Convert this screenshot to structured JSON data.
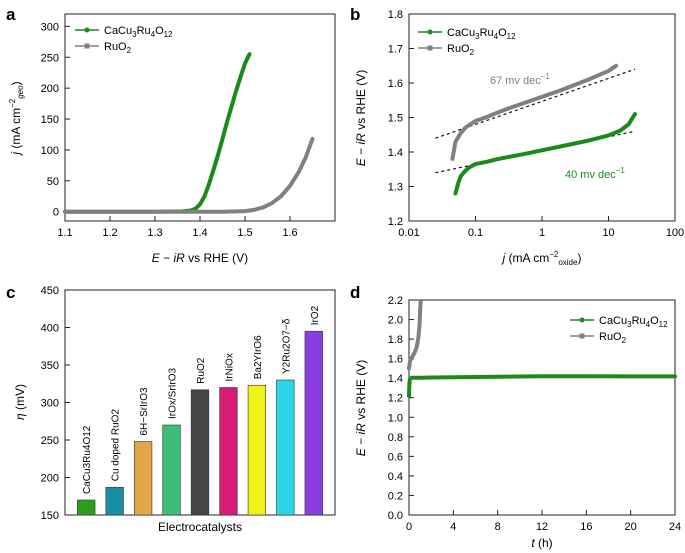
{
  "colors": {
    "green": "#1a8a1a",
    "gray": "#808080",
    "axis": "#222222"
  },
  "chart_data": [
    {
      "type": "line",
      "panel": "a",
      "xlabel": "E − iR vs RHE (V)",
      "ylabel": "j (mA cm−2geo)",
      "xlim": [
        1.1,
        1.7
      ],
      "ylim": [
        -15,
        320
      ],
      "xticks": [
        1.1,
        1.2,
        1.3,
        1.4,
        1.5,
        1.6
      ],
      "yticks": [
        0,
        50,
        100,
        150,
        200,
        250,
        300
      ],
      "legend": [
        "CaCu3Ru4O12",
        "RuO2"
      ],
      "legend_position": "top-left",
      "series": [
        {
          "name": "CaCu3Ru4O12",
          "color": "#1a8a1a",
          "x": [
            1.1,
            1.3,
            1.36,
            1.38,
            1.39,
            1.4,
            1.41,
            1.42,
            1.43,
            1.44,
            1.45,
            1.46,
            1.47,
            1.48,
            1.49,
            1.5,
            1.51
          ],
          "y": [
            0,
            0,
            0.5,
            2,
            5,
            12,
            25,
            45,
            68,
            92,
            118,
            145,
            170,
            195,
            218,
            240,
            255
          ]
        },
        {
          "name": "RuO2",
          "color": "#808080",
          "x": [
            1.1,
            1.45,
            1.5,
            1.52,
            1.54,
            1.56,
            1.58,
            1.6,
            1.62,
            1.635,
            1.65
          ],
          "y": [
            0,
            0,
            1,
            3,
            7,
            14,
            25,
            42,
            65,
            88,
            118
          ]
        }
      ]
    },
    {
      "type": "line",
      "panel": "b",
      "xscale": "log",
      "xlabel": "j (mA cm−2oxide)",
      "ylabel": "E − iR vs RHE (V)",
      "xlim": [
        0.01,
        100
      ],
      "ylim": [
        1.2,
        1.8
      ],
      "xticks": [
        0.01,
        0.1,
        1,
        10,
        100
      ],
      "xtick_labels": [
        "0.01",
        "0.1",
        "1",
        "10",
        "100"
      ],
      "yticks": [
        1.2,
        1.3,
        1.4,
        1.5,
        1.6,
        1.7,
        1.8
      ],
      "legend": [
        "CaCu3Ru4O12",
        "RuO2"
      ],
      "legend_position": "top-left",
      "annotations": [
        "67 mv dec−1",
        "40 mv dec−1"
      ],
      "series": [
        {
          "name": "CaCu3Ru4O12",
          "color": "#1a8a1a",
          "x": [
            0.05,
            0.055,
            0.06,
            0.07,
            0.08,
            0.1,
            0.15,
            0.2,
            0.3,
            0.5,
            1,
            2,
            5,
            10,
            15,
            20,
            25
          ],
          "y": [
            1.28,
            1.31,
            1.33,
            1.345,
            1.355,
            1.365,
            1.372,
            1.378,
            1.385,
            1.393,
            1.405,
            1.417,
            1.433,
            1.448,
            1.462,
            1.48,
            1.51
          ]
        },
        {
          "name": "RuO2",
          "color": "#808080",
          "x": [
            0.045,
            0.05,
            0.06,
            0.07,
            0.08,
            0.1,
            0.15,
            0.2,
            0.3,
            0.5,
            1,
            2,
            5,
            10,
            13
          ],
          "y": [
            1.38,
            1.43,
            1.455,
            1.47,
            1.478,
            1.49,
            1.502,
            1.512,
            1.525,
            1.54,
            1.56,
            1.58,
            1.61,
            1.635,
            1.65
          ]
        }
      ],
      "fit_lines": [
        {
          "x": [
            0.025,
            25
          ],
          "y": [
            1.44,
            1.64
          ]
        },
        {
          "x": [
            0.025,
            25
          ],
          "y": [
            1.34,
            1.46
          ]
        }
      ]
    },
    {
      "type": "bar",
      "panel": "c",
      "xlabel": "Electrocatalysts",
      "ylabel": "η (mV)",
      "ylim": [
        150,
        450
      ],
      "yticks": [
        150,
        200,
        250,
        300,
        350,
        400,
        450
      ],
      "categories": [
        "CaCu3Ru4O12",
        "Cu doped RuO2",
        "6H−SrIrO3",
        "IrOx/SrIrO3",
        "RuO2",
        "IrNiOx",
        "Ba2YIrO6",
        "Y2Ru2O7−δ",
        "IrO2"
      ],
      "values": [
        170,
        187,
        248,
        270,
        317,
        320,
        323,
        330,
        395
      ],
      "colors": [
        "#2e9d1e",
        "#1a8fa3",
        "#e2a64a",
        "#3dbd7a",
        "#444444",
        "#d81b73",
        "#f2f21b",
        "#2ad6e6",
        "#8a3de0"
      ]
    },
    {
      "type": "line",
      "panel": "d",
      "xlabel": "t (h)",
      "ylabel": "E − iR vs RHE (V)",
      "xlim": [
        0,
        24
      ],
      "ylim": [
        0,
        2.2
      ],
      "xticks": [
        0,
        4,
        8,
        12,
        16,
        20,
        24
      ],
      "yticks": [
        0,
        0.2,
        0.4,
        0.6,
        0.8,
        1.0,
        1.2,
        1.4,
        1.6,
        1.8,
        2.0,
        2.2
      ],
      "legend": [
        "CaCu3Ru4O12",
        "RuO2"
      ],
      "legend_position": "top-right",
      "series": [
        {
          "name": "CaCu3Ru4O12",
          "color": "#1a8a1a",
          "x": [
            0,
            0.02,
            0.05,
            0.1,
            0.3,
            1,
            2,
            4,
            8,
            12,
            16,
            20,
            24
          ],
          "y": [
            1.22,
            1.3,
            1.36,
            1.395,
            1.405,
            1.405,
            1.407,
            1.41,
            1.415,
            1.42,
            1.42,
            1.418,
            1.418
          ]
        },
        {
          "name": "RuO2",
          "color": "#808080",
          "x": [
            0,
            0.1,
            0.3,
            0.5,
            0.7,
            0.85,
            0.95,
            1.0,
            1.05
          ],
          "y": [
            1.5,
            1.58,
            1.62,
            1.66,
            1.72,
            1.82,
            1.95,
            2.08,
            2.18
          ]
        }
      ]
    }
  ]
}
